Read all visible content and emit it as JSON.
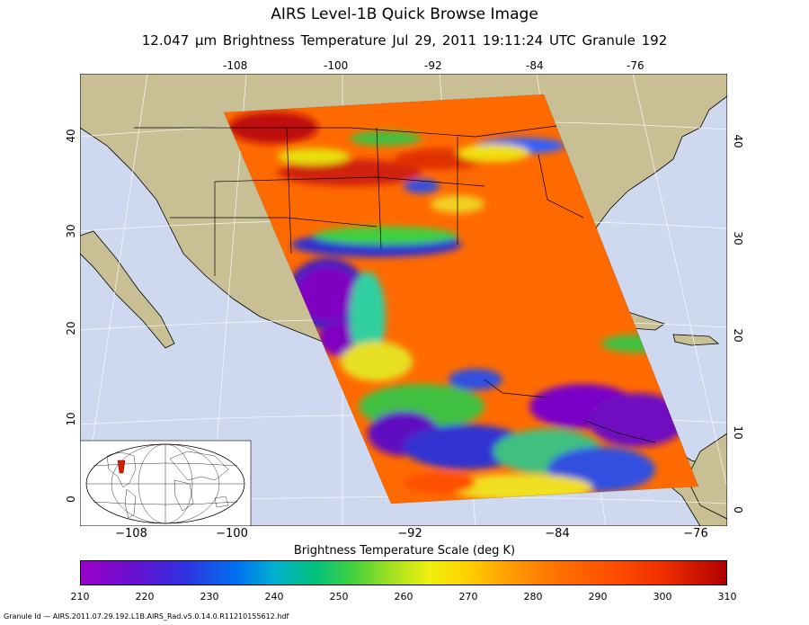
{
  "title": "AIRS Level-1B Quick Browse Image",
  "subtitle": "12.047 μm Brightness Temperature    Jul 29, 2011 19:11:24 UTC  Granule 192",
  "top_lon_labels": [
    "-108",
    "-100",
    "-92",
    "-84",
    "-76"
  ],
  "bottom_lon_labels": [
    "−108",
    "−100",
    "−92",
    "−84",
    "−76"
  ],
  "lat_labels": [
    "40",
    "30",
    "20",
    "10",
    "0"
  ],
  "colorbar": {
    "title": "Brightness Temperature Scale (deg K)",
    "ticks": [
      "210",
      "220",
      "230",
      "240",
      "250",
      "260",
      "270",
      "280",
      "290",
      "300",
      "310"
    ],
    "min": 210,
    "max": 310
  },
  "granule_id": "Granule Id — AIRS.2011.07.29.192.L1B.AIRS_Rad.v5.0.14.0.R11210155612.hdf",
  "colors": {
    "land": "#c8bf95",
    "ocean": "#ced8ef",
    "hot": "#ff6a00",
    "cold": "#7a00c8"
  }
}
